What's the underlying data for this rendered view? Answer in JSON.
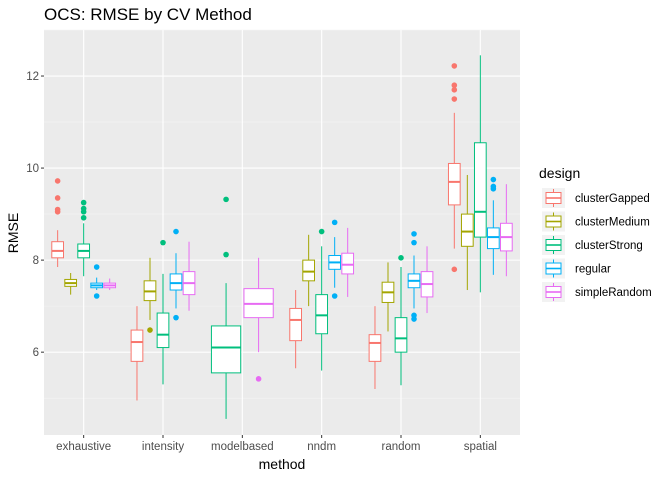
{
  "chart_data": {
    "type": "boxplot",
    "title": "OCS: RMSE by CV Method",
    "xlabel": "method",
    "ylabel": "RMSE",
    "ylim": [
      4.2,
      13.0
    ],
    "yticks": [
      6,
      8,
      10,
      12
    ],
    "categories": [
      "exhaustive",
      "intensity",
      "modelbased",
      "nndm",
      "random",
      "spatial"
    ],
    "legend": {
      "title": "design",
      "position": "right"
    },
    "grid": true,
    "series": [
      {
        "name": "clusterGapped",
        "color": "#F8766D",
        "boxes": {
          "exhaustive": {
            "lower": 7.85,
            "q1": 8.05,
            "median": 8.2,
            "q3": 8.4,
            "upper": 8.65,
            "outliers": [
              9.05,
              9.1,
              9.35,
              9.72
            ]
          },
          "intensity": {
            "lower": 4.95,
            "q1": 5.8,
            "median": 6.22,
            "q3": 6.48,
            "upper": 7.0,
            "outliers": []
          },
          "nndm": {
            "lower": 5.65,
            "q1": 6.25,
            "median": 6.7,
            "q3": 6.95,
            "upper": 7.35,
            "outliers": []
          },
          "random": {
            "lower": 5.2,
            "q1": 5.8,
            "median": 6.2,
            "q3": 6.38,
            "upper": 7.0,
            "outliers": []
          },
          "spatial": {
            "lower": 8.25,
            "q1": 9.2,
            "median": 9.7,
            "q3": 10.1,
            "upper": 11.2,
            "outliers": [
              7.8,
              11.5,
              11.7,
              11.8,
              12.22
            ]
          }
        }
      },
      {
        "name": "clusterMedium",
        "color": "#A3A500",
        "boxes": {
          "exhaustive": {
            "lower": 7.25,
            "q1": 7.43,
            "median": 7.5,
            "q3": 7.58,
            "upper": 7.72,
            "outliers": []
          },
          "intensity": {
            "lower": 6.7,
            "q1": 7.12,
            "median": 7.32,
            "q3": 7.55,
            "upper": 8.05,
            "outliers": [
              6.48
            ]
          },
          "nndm": {
            "lower": 7.0,
            "q1": 7.55,
            "median": 7.75,
            "q3": 8.0,
            "upper": 8.55,
            "outliers": []
          },
          "random": {
            "lower": 6.45,
            "q1": 7.08,
            "median": 7.3,
            "q3": 7.52,
            "upper": 7.95,
            "outliers": []
          },
          "spatial": {
            "lower": 7.35,
            "q1": 8.3,
            "median": 8.62,
            "q3": 9.0,
            "upper": 9.85,
            "outliers": []
          }
        }
      },
      {
        "name": "clusterStrong",
        "color": "#00BF7D",
        "boxes": {
          "exhaustive": {
            "lower": 7.65,
            "q1": 8.05,
            "median": 8.2,
            "q3": 8.35,
            "upper": 8.8,
            "outliers": [
              8.92,
              9.05,
              9.12,
              9.25
            ]
          },
          "intensity": {
            "lower": 5.3,
            "q1": 6.1,
            "median": 6.38,
            "q3": 6.85,
            "upper": 7.7,
            "outliers": [
              8.38
            ]
          },
          "modelbased": {
            "lower": 4.55,
            "q1": 5.55,
            "median": 6.1,
            "q3": 6.57,
            "upper": 7.5,
            "outliers": [
              8.12,
              9.32
            ]
          },
          "nndm": {
            "lower": 5.6,
            "q1": 6.4,
            "median": 6.8,
            "q3": 7.25,
            "upper": 8.3,
            "outliers": [
              8.62
            ]
          },
          "random": {
            "lower": 5.28,
            "q1": 6.0,
            "median": 6.3,
            "q3": 6.75,
            "upper": 7.85,
            "outliers": [
              8.05
            ]
          },
          "spatial": {
            "lower": 7.3,
            "q1": 8.5,
            "median": 9.05,
            "q3": 10.55,
            "upper": 12.45,
            "outliers": []
          }
        }
      },
      {
        "name": "regular",
        "color": "#00B0F6",
        "boxes": {
          "exhaustive": {
            "lower": 7.35,
            "q1": 7.4,
            "median": 7.45,
            "q3": 7.5,
            "upper": 7.62,
            "outliers": [
              7.22,
              7.85
            ]
          },
          "intensity": {
            "lower": 6.95,
            "q1": 7.35,
            "median": 7.5,
            "q3": 7.7,
            "upper": 8.15,
            "outliers": [
              6.75,
              8.62
            ]
          },
          "nndm": {
            "lower": 7.4,
            "q1": 7.8,
            "median": 7.95,
            "q3": 8.1,
            "upper": 8.5,
            "outliers": [
              7.22,
              8.82
            ]
          },
          "random": {
            "lower": 6.95,
            "q1": 7.4,
            "median": 7.55,
            "q3": 7.7,
            "upper": 8.1,
            "outliers": [
              6.72,
              6.8,
              8.38,
              8.57
            ]
          },
          "spatial": {
            "lower": 7.68,
            "q1": 8.25,
            "median": 8.5,
            "q3": 8.7,
            "upper": 9.3,
            "outliers": [
              9.55,
              9.6,
              9.75
            ]
          }
        }
      },
      {
        "name": "simpleRandom",
        "color": "#E76BF3",
        "boxes": {
          "exhaustive": {
            "lower": 7.35,
            "q1": 7.4,
            "median": 7.45,
            "q3": 7.5,
            "upper": 7.6,
            "outliers": []
          },
          "intensity": {
            "lower": 6.9,
            "q1": 7.25,
            "median": 7.5,
            "q3": 7.75,
            "upper": 8.4,
            "outliers": []
          },
          "modelbased": {
            "lower": 6.0,
            "q1": 6.75,
            "median": 7.05,
            "q3": 7.38,
            "upper": 8.05,
            "outliers": [
              5.42
            ]
          },
          "nndm": {
            "lower": 7.2,
            "q1": 7.7,
            "median": 7.9,
            "q3": 8.15,
            "upper": 8.7,
            "outliers": []
          },
          "random": {
            "lower": 6.85,
            "q1": 7.2,
            "median": 7.48,
            "q3": 7.75,
            "upper": 8.3,
            "outliers": []
          },
          "spatial": {
            "lower": 7.65,
            "q1": 8.2,
            "median": 8.5,
            "q3": 8.8,
            "upper": 9.65,
            "outliers": []
          }
        }
      }
    ]
  }
}
